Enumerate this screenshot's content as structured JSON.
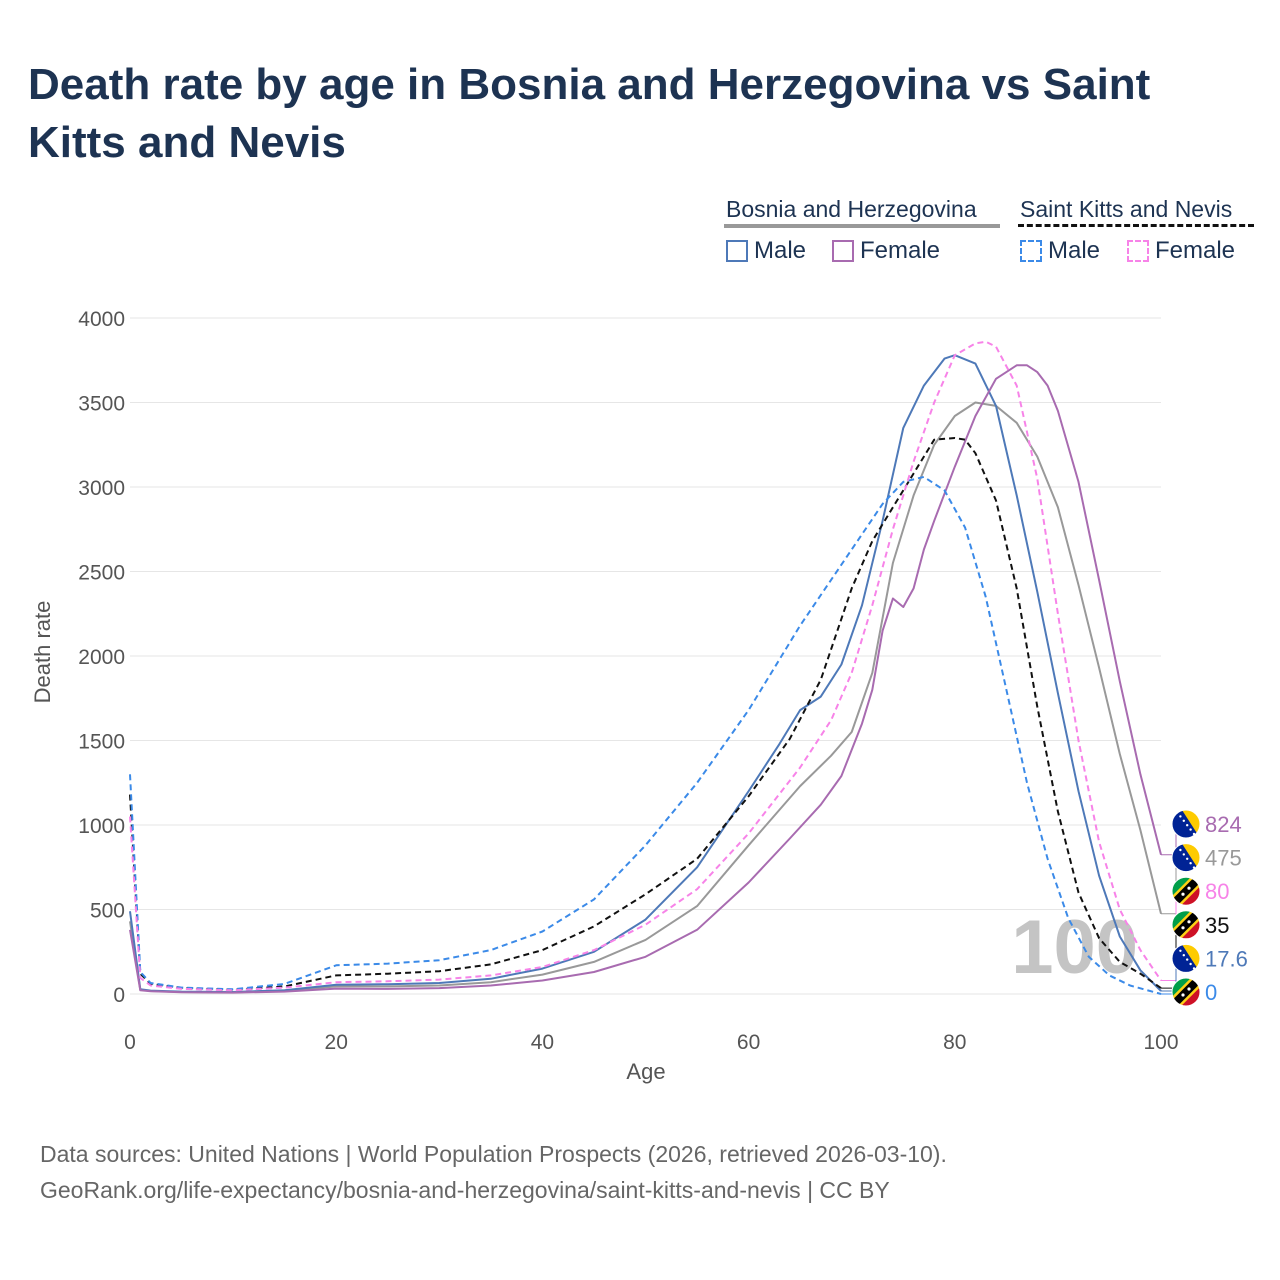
{
  "title": "Death rate by age in Bosnia and Herzegovina vs Saint Kitts and Nevis",
  "legend": {
    "groups": [
      {
        "name": "Bosnia and Herzegovina",
        "items": [
          {
            "label": "Male",
            "color": "#4e79b8"
          },
          {
            "label": "Female",
            "color": "#a86bb0"
          }
        ],
        "group_color": "#999999",
        "style": "solid"
      },
      {
        "name": "Saint Kitts and Nevis",
        "items": [
          {
            "label": "Male",
            "color": "#3b8ae8"
          },
          {
            "label": "Female",
            "color": "#f783e8"
          }
        ],
        "group_color": "#111111",
        "style": "dashed"
      }
    ]
  },
  "chart_data": {
    "type": "line",
    "title": "Death rate by age in Bosnia and Herzegovina vs Saint Kitts and Nevis",
    "xlabel": "Age",
    "ylabel": "Death rate",
    "xlim": [
      0,
      100
    ],
    "ylim": [
      0,
      4000
    ],
    "xticks": [
      0,
      20,
      40,
      60,
      80,
      100
    ],
    "yticks": [
      0,
      500,
      1000,
      1500,
      2000,
      2500,
      3000,
      3500,
      4000
    ],
    "watermark": "100",
    "series": [
      {
        "name": "Bosnia and Herzegovina Total",
        "color": "#999999",
        "dash": "solid",
        "x": [
          0,
          1,
          2,
          5,
          10,
          15,
          20,
          25,
          30,
          35,
          40,
          45,
          50,
          55,
          60,
          65,
          68,
          70,
          72,
          74,
          76,
          78,
          80,
          82,
          84,
          86,
          88,
          90,
          92,
          94,
          96,
          98,
          100
        ],
        "y": [
          430,
          25,
          18,
          12,
          10,
          18,
          45,
          45,
          50,
          70,
          115,
          190,
          320,
          520,
          880,
          1230,
          1410,
          1550,
          1900,
          2550,
          2950,
          3250,
          3420,
          3500,
          3480,
          3380,
          3180,
          2880,
          2420,
          1930,
          1420,
          970,
          475
        ],
        "end_label": "475"
      },
      {
        "name": "Bosnia and Herzegovina Male",
        "color": "#4e79b8",
        "dash": "solid",
        "x": [
          0,
          1,
          2,
          5,
          10,
          15,
          20,
          25,
          30,
          35,
          40,
          45,
          50,
          55,
          60,
          63,
          65,
          67,
          69,
          71,
          73,
          75,
          77,
          79,
          80,
          82,
          84,
          86,
          88,
          90,
          92,
          94,
          96,
          98,
          100
        ],
        "y": [
          490,
          28,
          20,
          14,
          12,
          22,
          55,
          58,
          65,
          90,
          150,
          250,
          440,
          750,
          1200,
          1480,
          1680,
          1760,
          1950,
          2300,
          2800,
          3350,
          3600,
          3760,
          3780,
          3730,
          3480,
          2950,
          2380,
          1780,
          1200,
          700,
          340,
          140,
          17.6
        ],
        "end_label": "17.6"
      },
      {
        "name": "Bosnia and Herzegovina Female",
        "color": "#a86bb0",
        "dash": "solid",
        "x": [
          0,
          1,
          2,
          5,
          10,
          15,
          20,
          25,
          30,
          35,
          40,
          45,
          50,
          55,
          60,
          64,
          67,
          69,
          71,
          72,
          73,
          74,
          75,
          76,
          77,
          78,
          80,
          82,
          84,
          86,
          87,
          88,
          89,
          90,
          92,
          94,
          96,
          98,
          100
        ],
        "y": [
          380,
          22,
          16,
          10,
          8,
          14,
          32,
          30,
          35,
          50,
          80,
          130,
          220,
          380,
          660,
          920,
          1120,
          1290,
          1600,
          1800,
          2150,
          2340,
          2290,
          2400,
          2630,
          2800,
          3120,
          3420,
          3640,
          3720,
          3720,
          3680,
          3600,
          3450,
          3030,
          2450,
          1850,
          1300,
          824
        ],
        "end_label": "824"
      },
      {
        "name": "Saint Kitts and Nevis Total",
        "color": "#111111",
        "dash": "dashed",
        "x": [
          0,
          1,
          2,
          5,
          10,
          15,
          20,
          25,
          30,
          35,
          40,
          45,
          50,
          55,
          60,
          64,
          67,
          70,
          72,
          74,
          76,
          78,
          80,
          81,
          82,
          84,
          86,
          88,
          90,
          92,
          94,
          96,
          98,
          100
        ],
        "y": [
          1180,
          120,
          60,
          35,
          25,
          45,
          110,
          120,
          135,
          175,
          260,
          400,
          590,
          800,
          1170,
          1510,
          1860,
          2400,
          2680,
          2880,
          3080,
          3280,
          3290,
          3280,
          3200,
          2920,
          2400,
          1700,
          1080,
          600,
          330,
          190,
          120,
          35
        ],
        "end_label": "35"
      },
      {
        "name": "Saint Kitts and Nevis Male",
        "color": "#3b8ae8",
        "dash": "dashed",
        "x": [
          0,
          1,
          2,
          5,
          10,
          15,
          20,
          25,
          30,
          35,
          40,
          45,
          50,
          55,
          60,
          65,
          70,
          73,
          75,
          77,
          79,
          81,
          83,
          85,
          87,
          89,
          91,
          93,
          95,
          97,
          100
        ],
        "y": [
          1300,
          130,
          65,
          38,
          28,
          60,
          170,
          180,
          200,
          260,
          370,
          560,
          880,
          1250,
          1680,
          2180,
          2630,
          2900,
          3030,
          3060,
          2980,
          2760,
          2350,
          1800,
          1250,
          800,
          450,
          220,
          110,
          50,
          0
        ],
        "end_label": "0"
      },
      {
        "name": "Saint Kitts and Nevis Female",
        "color": "#f783e8",
        "dash": "dashed",
        "x": [
          0,
          1,
          2,
          5,
          10,
          15,
          20,
          25,
          30,
          35,
          40,
          45,
          50,
          55,
          60,
          65,
          68,
          70,
          72,
          74,
          76,
          78,
          80,
          82,
          83,
          84,
          86,
          88,
          90,
          92,
          94,
          96,
          98,
          100
        ],
        "y": [
          1050,
          95,
          50,
          30,
          22,
          38,
          70,
          75,
          85,
          110,
          160,
          260,
          410,
          620,
          950,
          1340,
          1620,
          1900,
          2300,
          2750,
          3150,
          3500,
          3780,
          3850,
          3860,
          3830,
          3600,
          3050,
          2250,
          1500,
          900,
          500,
          260,
          80
        ],
        "end_label": "80"
      }
    ],
    "end_label_order": [
      {
        "series": "Bosnia and Herzegovina Female",
        "flag": "bosnia-flag-icon"
      },
      {
        "series": "Bosnia and Herzegovina Total",
        "flag": "bosnia-flag-icon"
      },
      {
        "series": "Saint Kitts and Nevis Female",
        "flag": "saint-kitts-flag-icon"
      },
      {
        "series": "Saint Kitts and Nevis Total",
        "flag": "saint-kitts-flag-icon"
      },
      {
        "series": "Bosnia and Herzegovina Male",
        "flag": "bosnia-flag-icon"
      },
      {
        "series": "Saint Kitts and Nevis Male",
        "flag": "saint-kitts-flag-icon"
      }
    ]
  },
  "footer": {
    "line1": "Data sources: United Nations | World Population Prospects (2026, retrieved 2026-03-10).",
    "line2": "GeoRank.org/life-expectancy/bosnia-and-herzegovina/saint-kitts-and-nevis | CC BY"
  }
}
